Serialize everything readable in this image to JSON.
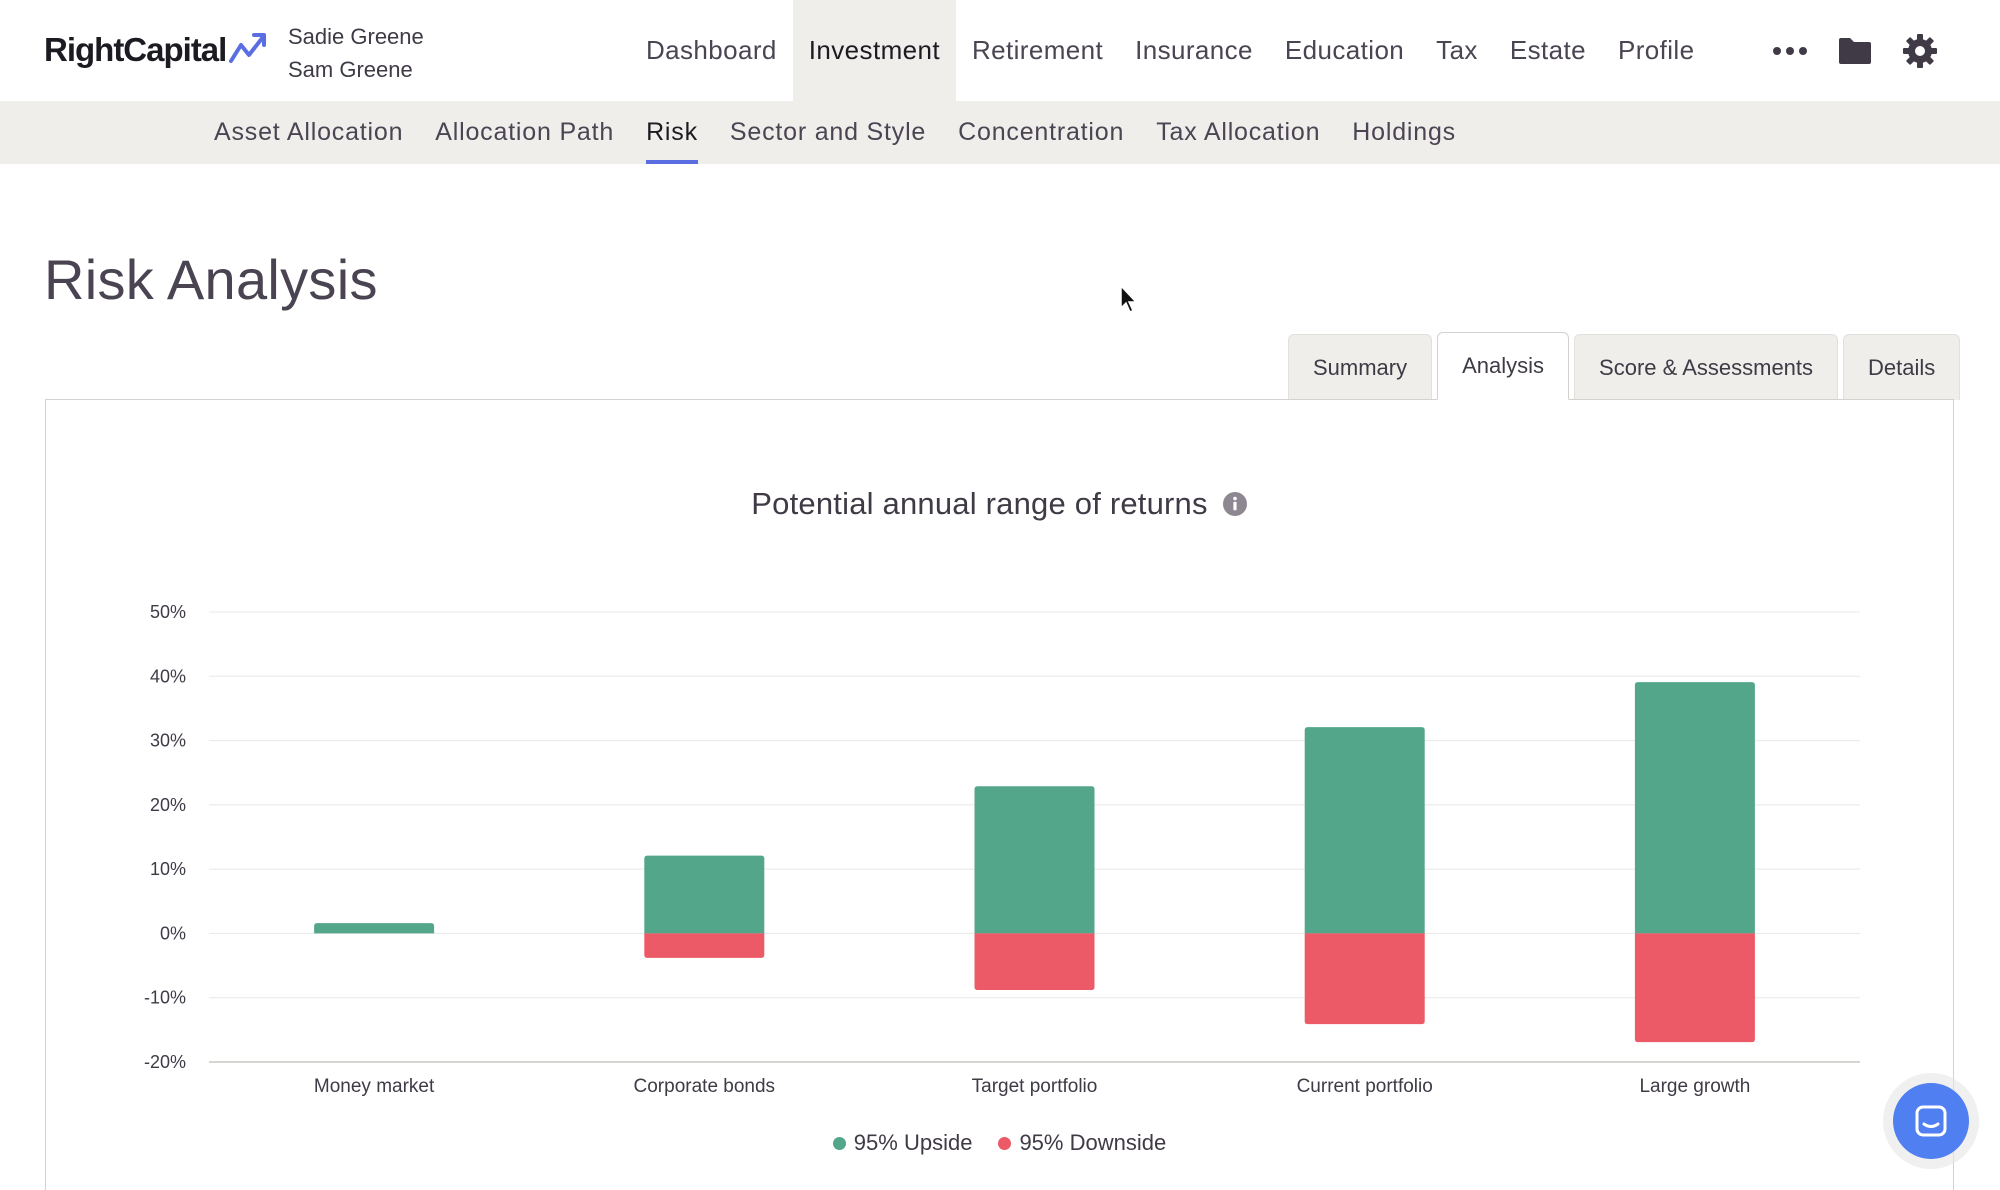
{
  "brand": {
    "name": "RightCapital",
    "logo_icon": "rising-arrow-icon",
    "accent_color": "#5b6ee1"
  },
  "clients": [
    "Sadie Greene",
    "Sam Greene"
  ],
  "main_nav": {
    "items": [
      {
        "label": "Dashboard"
      },
      {
        "label": "Investment"
      },
      {
        "label": "Retirement"
      },
      {
        "label": "Insurance"
      },
      {
        "label": "Education"
      },
      {
        "label": "Tax"
      },
      {
        "label": "Estate"
      },
      {
        "label": "Profile"
      }
    ],
    "active": "Investment",
    "icons": [
      "more-icon",
      "folder-icon",
      "settings-gear-icon"
    ]
  },
  "sub_nav": {
    "items": [
      {
        "label": "Asset Allocation"
      },
      {
        "label": "Allocation Path"
      },
      {
        "label": "Risk"
      },
      {
        "label": "Sector and Style"
      },
      {
        "label": "Concentration"
      },
      {
        "label": "Tax Allocation"
      },
      {
        "label": "Holdings"
      }
    ],
    "active": "Risk"
  },
  "page": {
    "title": "Risk Analysis"
  },
  "tabs": {
    "items": [
      {
        "label": "Summary"
      },
      {
        "label": "Analysis"
      },
      {
        "label": "Score & Assessments"
      },
      {
        "label": "Details"
      }
    ],
    "active": "Analysis"
  },
  "chart_data": {
    "type": "bar",
    "stacked": true,
    "title": "Potential annual range of returns",
    "title_icon": "info-icon",
    "categories": [
      "Money market",
      "Corporate bonds",
      "Target portfolio",
      "Current portfolio",
      "Large growth"
    ],
    "series": [
      {
        "name": "95% Upside",
        "color": "#54a68a",
        "values": [
          1.6,
          12.1,
          22.9,
          32.1,
          39.1
        ]
      },
      {
        "name": "95% Downside",
        "color": "#eb5a66",
        "values": [
          0,
          -3.8,
          -8.8,
          -14.1,
          -16.9
        ]
      }
    ],
    "ylim": [
      -20,
      50
    ],
    "yticks": [
      50,
      40,
      30,
      20,
      10,
      0,
      -10,
      -20
    ],
    "ytick_labels": [
      "50%",
      "40%",
      "30%",
      "20%",
      "10%",
      "0%",
      "-10%",
      "-20%"
    ],
    "grid": true,
    "legend_position": "bottom-center"
  },
  "chat": {
    "icon": "chat-icon",
    "color": "#4f7ff0"
  }
}
